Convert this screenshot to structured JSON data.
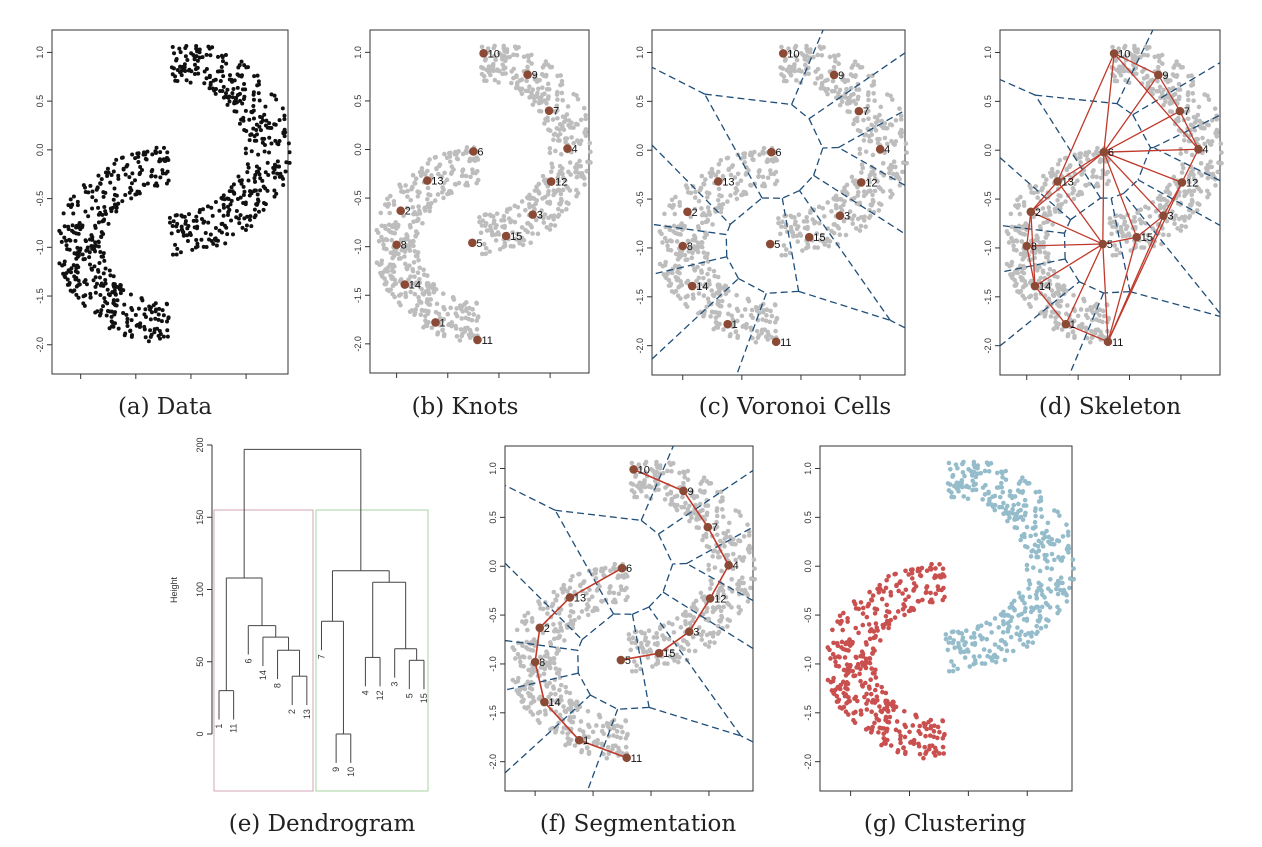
{
  "captions": {
    "a": "(a) Data",
    "b": "(b) Knots",
    "c": "(c) Voronoi Cells",
    "d": "(d) Skeleton",
    "e": "(e) Dendrogram",
    "f": "(f) Segmentation",
    "g": "(g) Clustering"
  },
  "colors": {
    "data_points": "#111111",
    "gray_points": "#bdbdbd",
    "knot": "#8b4a35",
    "voronoi": "#1f4e79",
    "skeleton": "#c0392b",
    "cluster_1": "#c9504f",
    "cluster_2": "#94bccb",
    "box_cluster_1": "#d4a6b4",
    "box_cluster_2": "#a8d4a0",
    "dendro": "#444444"
  },
  "chart_data": [
    {
      "type": "scatter",
      "panels": [
        "a",
        "b",
        "c",
        "d",
        "f",
        "g"
      ],
      "ylim": [
        -2.3,
        1.23
      ],
      "xlim": [
        -0.26,
        1.88
      ],
      "y_ticks": [
        1.0,
        0.5,
        0.0,
        -0.5,
        -1.0,
        -1.5,
        -2.0
      ],
      "y_tick_labels": [
        "1.0",
        "0.5",
        "0.0",
        "-0.5",
        "-1.0",
        "-1.5",
        "-2.0"
      ],
      "x_ticks": [
        0,
        0.5,
        1.0,
        1.5
      ],
      "knots": [
        {
          "id": "1",
          "x": 0.38,
          "y": -1.78
        },
        {
          "id": "2",
          "x": 0.04,
          "y": -0.63
        },
        {
          "id": "3",
          "x": 1.33,
          "y": -0.67
        },
        {
          "id": "4",
          "x": 1.67,
          "y": 0.01
        },
        {
          "id": "5",
          "x": 0.74,
          "y": -0.96
        },
        {
          "id": "6",
          "x": 0.75,
          "y": -0.02
        },
        {
          "id": "7",
          "x": 1.49,
          "y": 0.4
        },
        {
          "id": "8",
          "x": 0.0,
          "y": -0.98
        },
        {
          "id": "9",
          "x": 1.28,
          "y": 0.77
        },
        {
          "id": "10",
          "x": 0.85,
          "y": 0.99
        },
        {
          "id": "11",
          "x": 0.79,
          "y": -1.96
        },
        {
          "id": "12",
          "x": 1.51,
          "y": -0.33
        },
        {
          "id": "13",
          "x": 0.3,
          "y": -0.32
        },
        {
          "id": "14",
          "x": 0.08,
          "y": -1.39
        },
        {
          "id": "15",
          "x": 1.07,
          "y": -0.89
        }
      ],
      "skeleton_edges": [
        [
          "10",
          "9"
        ],
        [
          "9",
          "7"
        ],
        [
          "7",
          "4"
        ],
        [
          "4",
          "12"
        ],
        [
          "12",
          "3"
        ],
        [
          "3",
          "15"
        ],
        [
          "15",
          "5"
        ],
        [
          "6",
          "10"
        ],
        [
          "6",
          "9"
        ],
        [
          "6",
          "7"
        ],
        [
          "6",
          "4"
        ],
        [
          "6",
          "12"
        ],
        [
          "6",
          "13"
        ],
        [
          "6",
          "2"
        ],
        [
          "6",
          "5"
        ],
        [
          "6",
          "15"
        ],
        [
          "6",
          "3"
        ],
        [
          "10",
          "13"
        ],
        [
          "13",
          "2"
        ],
        [
          "2",
          "8"
        ],
        [
          "8",
          "14"
        ],
        [
          "14",
          "1"
        ],
        [
          "1",
          "11"
        ],
        [
          "5",
          "2"
        ],
        [
          "5",
          "8"
        ],
        [
          "5",
          "14"
        ],
        [
          "5",
          "1"
        ],
        [
          "5",
          "11"
        ],
        [
          "5",
          "13"
        ],
        [
          "15",
          "11"
        ],
        [
          "3",
          "11"
        ],
        [
          "12",
          "11"
        ],
        [
          "10",
          "4"
        ],
        [
          "2",
          "14"
        ]
      ],
      "segmentation_paths": [
        [
          "10",
          "9",
          "7",
          "4",
          "12",
          "3",
          "15",
          "5"
        ],
        [
          "6",
          "13",
          "2",
          "8",
          "14",
          "1",
          "11"
        ]
      ]
    },
    {
      "type": "dendrogram",
      "panel": "e",
      "ylabel": "Height",
      "ylim": [
        -35,
        200
      ],
      "y_ticks": [
        0,
        50,
        100,
        150,
        200
      ],
      "y_tick_labels": [
        "0",
        "50",
        "100",
        "150",
        "200"
      ],
      "cut_height": 155,
      "tree": {
        "h": 197,
        "c": [
          {
            "h": 108,
            "c": [
              {
                "h": 30,
                "c": [
                  "1",
                  "11"
                ]
              },
              {
                "h": 75,
                "c": [
                  "6",
                  {
                    "h": 67,
                    "c": [
                      "14",
                      {
                        "h": 58,
                        "c": [
                          "8",
                          {
                            "h": 40,
                            "c": [
                              "2",
                              "13"
                            ]
                          }
                        ]
                      }
                    ]
                  }
                ]
              }
            ]
          },
          {
            "h": 113,
            "c": [
              {
                "h": 78,
                "c": [
                  "7",
                  {
                    "h": 0,
                    "c": [
                      "9",
                      "10"
                    ]
                  }
                ]
              },
              {
                "h": 105,
                "c": [
                  {
                    "h": 53,
                    "c": [
                      "4",
                      "12"
                    ]
                  },
                  {
                    "h": 59,
                    "c": [
                      "3",
                      {
                        "h": 51,
                        "c": [
                          "5",
                          "15"
                        ]
                      }
                    ]
                  }
                ]
              }
            ]
          }
        ]
      }
    }
  ]
}
